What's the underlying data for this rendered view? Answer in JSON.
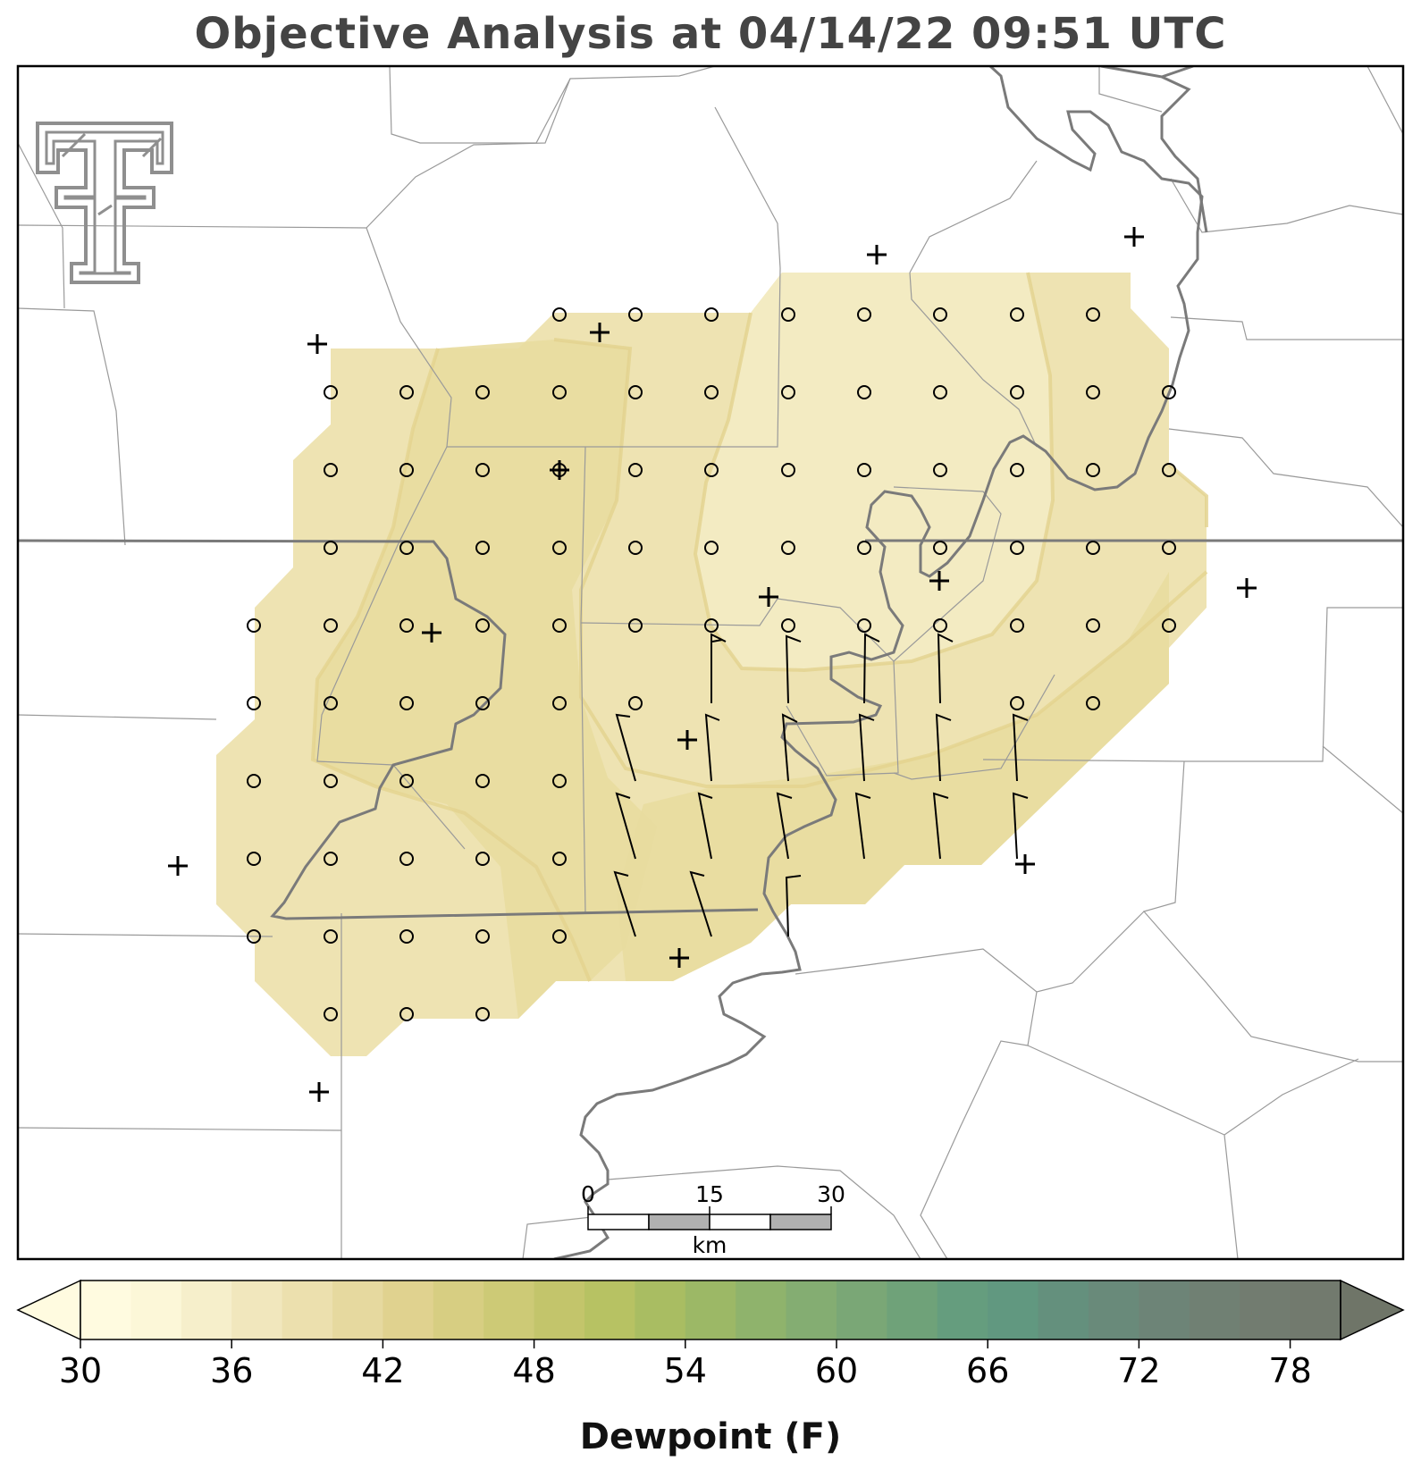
{
  "title": "Objective Analysis at 04/14/22 09:51 UTC",
  "scale_bar": {
    "labels": [
      "0",
      "15",
      "30"
    ],
    "unit": "km"
  },
  "colorbar": {
    "label": "Dewpoint (F)",
    "min": 30,
    "max": 80,
    "step": 2,
    "tick_values": [
      30,
      36,
      42,
      48,
      54,
      60,
      66,
      72,
      78
    ],
    "colors": [
      "#fffbe0",
      "#fcf7d8",
      "#f6efcb",
      "#f1e7bd",
      "#ece0ae",
      "#e6d99f",
      "#e0d28f",
      "#d7ce82",
      "#cdca76",
      "#c3c56b",
      "#b7c263",
      "#a9bd62",
      "#9cb866",
      "#8fb36c",
      "#84ad72",
      "#7aa776",
      "#6fa279",
      "#659d7e",
      "#619880",
      "#64907d",
      "#698a7a",
      "#6d8477",
      "#708073",
      "#727c70",
      "#727a6e",
      "#717669"
    ],
    "under_color": "#fffbe0",
    "over_color": "#6f7568"
  },
  "logo": {
    "icon": "texas-tech-double-t-icon"
  },
  "map": {
    "fill_levels": [
      {
        "range_f": "36-38",
        "color": "#f3ebc2"
      },
      {
        "range_f": "38-40",
        "color": "#eee3b2"
      },
      {
        "range_f": "40-42",
        "color": "#e8dc9f"
      }
    ],
    "grid_station_marker": "circle",
    "observation_marker": "plus",
    "wind_barbs": "present"
  }
}
